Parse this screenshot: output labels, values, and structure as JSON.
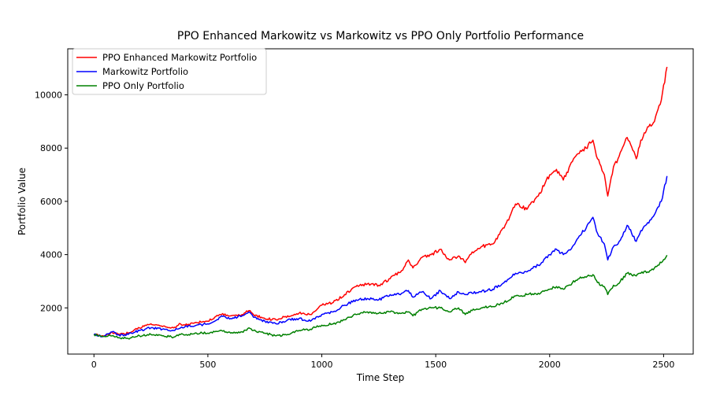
{
  "chart_data": {
    "type": "line",
    "title": "PPO Enhanced Markowitz vs Markowitz vs PPO Only Portfolio Performance",
    "xlabel": "Time Step",
    "ylabel": "Portfolio Value",
    "xlim": [
      -115,
      2630
    ],
    "ylim": [
      265,
      11730
    ],
    "xticks": [
      0,
      500,
      1000,
      1500,
      2000,
      2500
    ],
    "yticks": [
      2000,
      4000,
      6000,
      8000,
      10000
    ],
    "xtick_labels": [
      "0",
      "500",
      "1000",
      "1500",
      "2000",
      "2500"
    ],
    "ytick_labels": [
      "2000",
      "4000",
      "6000",
      "8000",
      "10000"
    ],
    "legend": "top-left",
    "grid": false,
    "series": [
      {
        "name": "PPO Enhanced Markowitz Portfolio",
        "color": "#ff0000",
        "x": [
          0,
          40,
          80,
          110,
          150,
          200,
          250,
          300,
          350,
          380,
          400,
          450,
          500,
          530,
          560,
          600,
          650,
          680,
          700,
          750,
          800,
          850,
          900,
          950,
          1000,
          1050,
          1100,
          1150,
          1200,
          1250,
          1300,
          1350,
          1380,
          1400,
          1440,
          1480,
          1520,
          1560,
          1600,
          1630,
          1660,
          1700,
          1750,
          1800,
          1850,
          1900,
          1950,
          2000,
          2030,
          2060,
          2100,
          2130,
          2160,
          2190,
          2210,
          2240,
          2255,
          2280,
          2300,
          2340,
          2380,
          2400,
          2430,
          2460,
          2490,
          2515
        ],
        "y": [
          1000,
          950,
          1080,
          1000,
          1050,
          1250,
          1400,
          1300,
          1250,
          1400,
          1350,
          1450,
          1500,
          1650,
          1750,
          1700,
          1750,
          1900,
          1750,
          1600,
          1550,
          1700,
          1800,
          1750,
          2100,
          2200,
          2500,
          2800,
          2900,
          2850,
          3100,
          3400,
          3800,
          3500,
          3900,
          4000,
          4200,
          3800,
          3950,
          3700,
          4100,
          4300,
          4400,
          5000,
          5900,
          5700,
          6200,
          7000,
          7200,
          6800,
          7500,
          7800,
          8000,
          8300,
          7600,
          7000,
          6200,
          7300,
          7600,
          8400,
          7600,
          8300,
          8800,
          9000,
          9800,
          11050
        ]
      },
      {
        "name": "Markowitz Portfolio",
        "color": "#0000ff",
        "x": [
          0,
          40,
          80,
          110,
          150,
          200,
          250,
          300,
          350,
          380,
          400,
          450,
          500,
          530,
          560,
          600,
          650,
          680,
          700,
          750,
          800,
          850,
          900,
          950,
          1000,
          1050,
          1100,
          1150,
          1200,
          1250,
          1300,
          1350,
          1380,
          1400,
          1440,
          1480,
          1520,
          1560,
          1600,
          1630,
          1660,
          1700,
          1750,
          1800,
          1850,
          1900,
          1950,
          2000,
          2030,
          2060,
          2100,
          2130,
          2160,
          2190,
          2210,
          2240,
          2255,
          2280,
          2300,
          2340,
          2380,
          2400,
          2430,
          2460,
          2490,
          2515
        ],
        "y": [
          1000,
          920,
          1100,
          980,
          1000,
          1150,
          1250,
          1200,
          1150,
          1250,
          1300,
          1350,
          1400,
          1500,
          1700,
          1600,
          1700,
          1850,
          1650,
          1500,
          1400,
          1550,
          1600,
          1500,
          1750,
          1850,
          2100,
          2300,
          2350,
          2300,
          2500,
          2550,
          2650,
          2400,
          2600,
          2350,
          2650,
          2350,
          2600,
          2500,
          2550,
          2600,
          2700,
          2950,
          3300,
          3350,
          3600,
          4000,
          4200,
          4000,
          4300,
          4700,
          5000,
          5400,
          4800,
          4400,
          3800,
          4300,
          4400,
          5100,
          4500,
          4900,
          5200,
          5500,
          6000,
          6950
        ]
      },
      {
        "name": "PPO Only Portfolio",
        "color": "#008000",
        "x": [
          0,
          40,
          80,
          110,
          150,
          200,
          250,
          300,
          350,
          380,
          400,
          450,
          500,
          530,
          560,
          600,
          650,
          680,
          700,
          750,
          800,
          850,
          900,
          950,
          1000,
          1050,
          1100,
          1150,
          1200,
          1250,
          1300,
          1350,
          1380,
          1400,
          1440,
          1480,
          1520,
          1560,
          1600,
          1630,
          1660,
          1700,
          1750,
          1800,
          1850,
          1900,
          1950,
          2000,
          2030,
          2060,
          2100,
          2130,
          2160,
          2190,
          2210,
          2240,
          2255,
          2280,
          2300,
          2340,
          2380,
          2400,
          2430,
          2460,
          2490,
          2515
        ],
        "y": [
          1000,
          920,
          950,
          880,
          850,
          950,
          1000,
          950,
          900,
          1000,
          980,
          1050,
          1050,
          1100,
          1150,
          1050,
          1100,
          1250,
          1150,
          1050,
          950,
          1000,
          1150,
          1200,
          1350,
          1400,
          1550,
          1750,
          1850,
          1800,
          1850,
          1800,
          1850,
          1700,
          1950,
          2000,
          2000,
          1850,
          2000,
          1750,
          1900,
          2000,
          2050,
          2200,
          2450,
          2500,
          2550,
          2700,
          2800,
          2700,
          2950,
          3100,
          3150,
          3250,
          2950,
          2800,
          2500,
          2850,
          2900,
          3300,
          3200,
          3300,
          3350,
          3500,
          3700,
          3980
        ]
      }
    ]
  }
}
